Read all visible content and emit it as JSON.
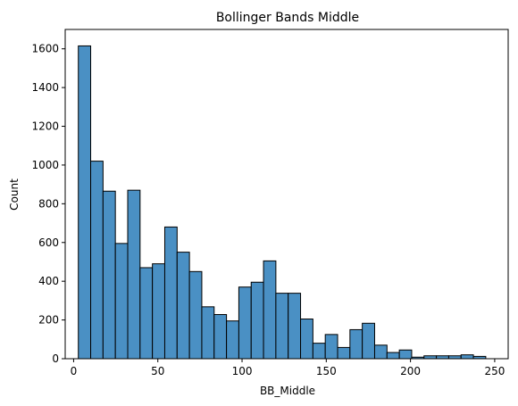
{
  "chart_data": {
    "type": "bar",
    "title": "Bollinger Bands Middle",
    "xlabel": "BB_Middle",
    "ylabel": "Count",
    "xlim": [
      -5,
      258
    ],
    "ylim": [
      0,
      1700
    ],
    "xticks": [
      0,
      50,
      100,
      150,
      200,
      250
    ],
    "yticks": [
      0,
      200,
      400,
      600,
      800,
      1000,
      1200,
      1400,
      1600
    ],
    "bin_start": 2.8,
    "bin_width": 7.33,
    "values": [
      1615,
      1020,
      865,
      595,
      870,
      470,
      490,
      680,
      550,
      450,
      268,
      228,
      195,
      370,
      395,
      505,
      338,
      338,
      205,
      80,
      125,
      58,
      150,
      183,
      70,
      32,
      45,
      8,
      15,
      15,
      15,
      20,
      12
    ],
    "bar_color": "#4a90c4",
    "edge_color": "#000000",
    "grid": false
  }
}
